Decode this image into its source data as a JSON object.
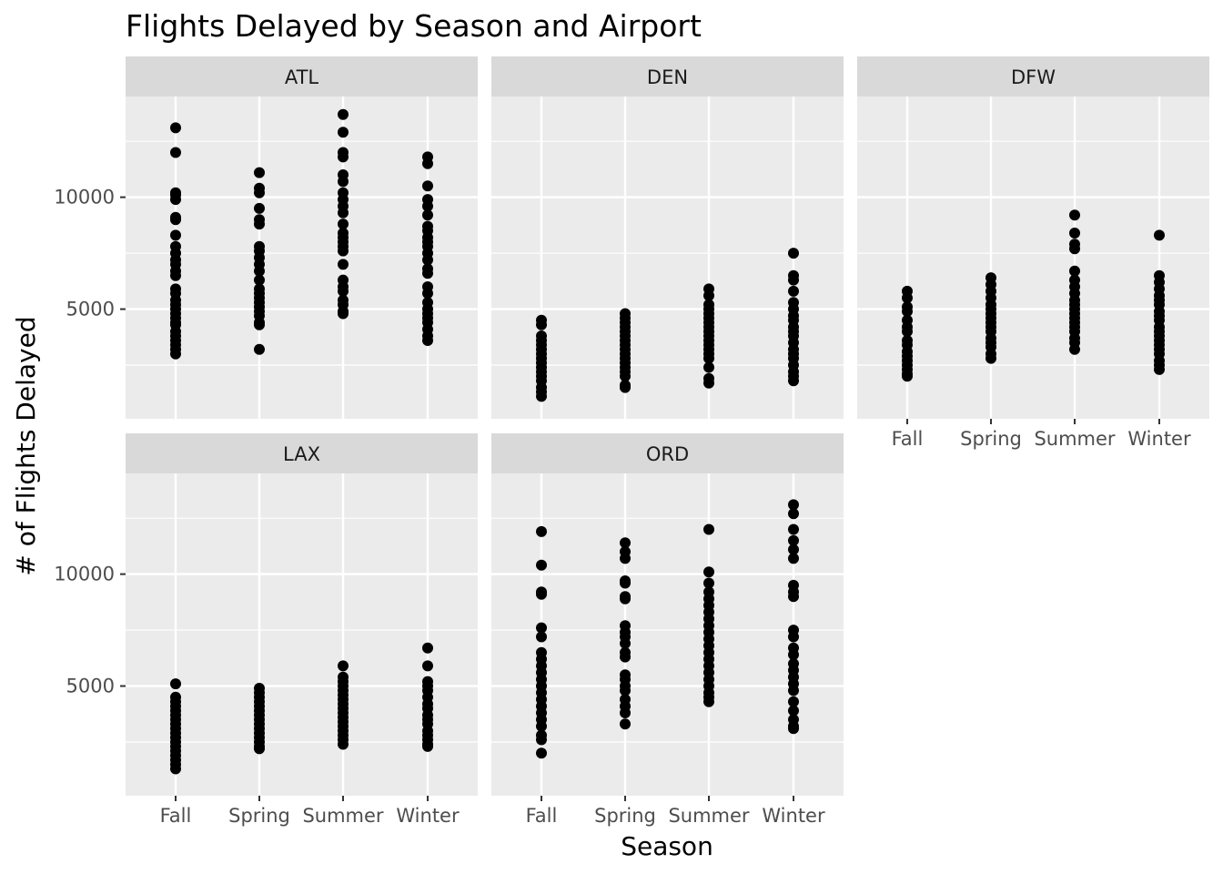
{
  "chart_data": {
    "type": "scatter",
    "title": "Flights Delayed by Season and Airport",
    "xlabel": "Season",
    "ylabel": "# of Flights Delayed",
    "categories": [
      "Fall",
      "Spring",
      "Summer",
      "Winter"
    ],
    "y_ticks": [
      "5000",
      "10000"
    ],
    "ylim": [
      100,
      14500
    ],
    "grid": true,
    "facets": [
      {
        "name": "ATL",
        "series": {
          "Fall": [
            13100,
            12000,
            10200,
            10100,
            9900,
            9100,
            9000,
            8300,
            7800,
            7500,
            7200,
            7000,
            6700,
            6500,
            5900,
            5700,
            5400,
            5200,
            5000,
            4800,
            4600,
            4400,
            4300,
            4000,
            3800,
            3600,
            3400,
            3200,
            3000
          ],
          "Spring": [
            11100,
            10400,
            10200,
            9500,
            9000,
            8800,
            7800,
            7600,
            7300,
            7000,
            6700,
            6300,
            5900,
            5700,
            5500,
            5300,
            5100,
            4900,
            4700,
            4400,
            4300,
            3200
          ],
          "Summer": [
            13700,
            12900,
            12000,
            11800,
            11000,
            10700,
            10200,
            9900,
            9600,
            9300,
            8800,
            8400,
            8200,
            8000,
            7800,
            7600,
            7000,
            6300,
            6000,
            5800,
            5400,
            5200,
            4900,
            4800
          ],
          "Winter": [
            11800,
            11500,
            10500,
            9900,
            9600,
            9200,
            8700,
            8500,
            8200,
            8000,
            7800,
            7500,
            7200,
            6800,
            6600,
            6000,
            5700,
            5300,
            5000,
            4800,
            4600,
            4400,
            4100,
            3800,
            3600
          ]
        }
      },
      {
        "name": "DEN",
        "series": {
          "Fall": [
            4500,
            4300,
            3800,
            3600,
            3400,
            3200,
            3000,
            2800,
            2600,
            2400,
            2200,
            2000,
            1800,
            1500,
            1300,
            1100
          ],
          "Spring": [
            4800,
            4600,
            4400,
            4200,
            4000,
            3800,
            3600,
            3400,
            3200,
            3000,
            2800,
            2600,
            2400,
            2200,
            2000,
            1600,
            1500
          ],
          "Summer": [
            5900,
            5600,
            5200,
            5000,
            4800,
            4600,
            4400,
            4200,
            4000,
            3800,
            3600,
            3400,
            3200,
            3000,
            2800,
            2400,
            1900,
            1700
          ],
          "Winter": [
            7500,
            6500,
            6300,
            5800,
            5300,
            5000,
            4700,
            4500,
            4200,
            4000,
            3800,
            3500,
            3200,
            3000,
            2800,
            2500,
            2200,
            2000,
            1800
          ]
        }
      },
      {
        "name": "DFW",
        "series": {
          "Fall": [
            5800,
            5500,
            5100,
            4900,
            4500,
            4200,
            4000,
            3600,
            3400,
            3100,
            2900,
            2700,
            2500,
            2300,
            2100,
            2000
          ],
          "Spring": [
            6400,
            6100,
            5800,
            5500,
            5200,
            5000,
            4800,
            4600,
            4400,
            4200,
            4000,
            3700,
            3500,
            3300,
            3000,
            2800
          ],
          "Summer": [
            9200,
            8400,
            7900,
            7700,
            6700,
            6300,
            6000,
            5700,
            5400,
            5200,
            5000,
            4800,
            4600,
            4400,
            4200,
            4000,
            3700,
            3500,
            3200
          ],
          "Winter": [
            8300,
            6500,
            6200,
            5900,
            5600,
            5400,
            5200,
            4900,
            4700,
            4500,
            4200,
            4000,
            3800,
            3600,
            3400,
            3200,
            3000,
            2700,
            2500,
            2300
          ]
        }
      },
      {
        "name": "LAX",
        "series": {
          "Fall": [
            5100,
            4500,
            4300,
            4100,
            3900,
            3700,
            3500,
            3300,
            3100,
            2900,
            2700,
            2500,
            2300,
            2100,
            1900,
            1700,
            1500,
            1300
          ],
          "Spring": [
            4900,
            4700,
            4500,
            4300,
            4100,
            3900,
            3700,
            3500,
            3300,
            3100,
            2900,
            2700,
            2500,
            2300,
            2200
          ],
          "Summer": [
            5900,
            5400,
            5200,
            5000,
            4800,
            4600,
            4400,
            4200,
            4000,
            3800,
            3600,
            3400,
            3200,
            3000,
            2800,
            2600,
            2400
          ],
          "Winter": [
            6700,
            5900,
            5200,
            5000,
            4800,
            4500,
            4200,
            4000,
            3700,
            3500,
            3300,
            3000,
            2800,
            2600,
            2400,
            2300
          ]
        }
      },
      {
        "name": "ORD",
        "series": {
          "Fall": [
            11900,
            10400,
            9200,
            9100,
            7600,
            7200,
            6500,
            6200,
            5900,
            5600,
            5300,
            5000,
            4700,
            4400,
            4100,
            3800,
            3500,
            3200,
            2800,
            2600,
            2000
          ],
          "Spring": [
            11400,
            11000,
            10700,
            9700,
            9600,
            9000,
            8900,
            7700,
            7400,
            7200,
            6900,
            6500,
            6300,
            5500,
            5300,
            5000,
            4800,
            4400,
            4100,
            3800,
            3300
          ],
          "Summer": [
            12000,
            10100,
            9600,
            9200,
            8900,
            8600,
            8300,
            8000,
            7700,
            7400,
            7100,
            6800,
            6500,
            6200,
            5900,
            5600,
            5300,
            5000,
            4700,
            4500,
            4300
          ],
          "Winter": [
            13100,
            12700,
            12000,
            11500,
            11100,
            10700,
            9500,
            9200,
            9000,
            7500,
            7200,
            6700,
            6400,
            6000,
            5700,
            5400,
            5100,
            4800,
            4300,
            3900,
            3500,
            3200,
            3100
          ]
        }
      }
    ]
  }
}
